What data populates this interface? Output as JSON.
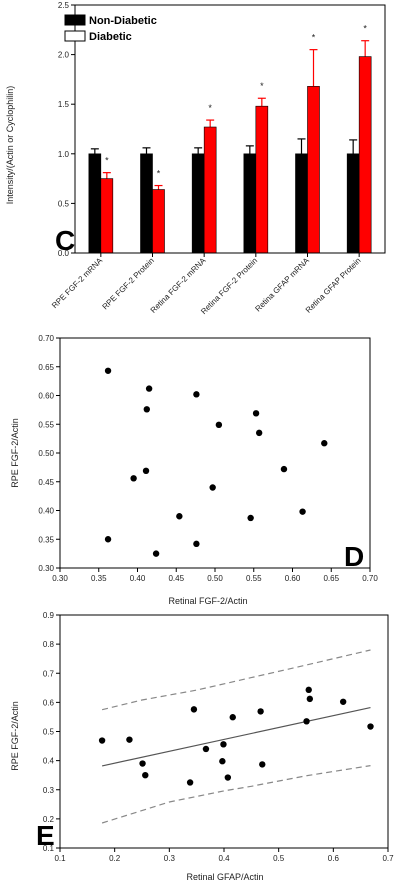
{
  "chart_data": [
    {
      "type": "bar",
      "panel_label": "C",
      "ylabel": "Intensity/(Actin or Cyclophilin)",
      "ylim": [
        0,
        2.5
      ],
      "yticks": [
        "0.0",
        "0.5",
        "1.0",
        "1.5",
        "2.0",
        "2.5"
      ],
      "categories": [
        "RPE FGF-2 mRNA",
        "RPE FGF-2 Protein",
        "Retina FGF-2 mRNA",
        "Retina FGF-2 Protein",
        "Retina GFAP mRNA",
        "Retina GFAP Protein"
      ],
      "series": [
        {
          "name": "Non-Diabetic",
          "color": "#000000",
          "values": [
            1.0,
            1.0,
            1.0,
            1.0,
            1.0,
            1.0
          ],
          "errors": [
            0.05,
            0.06,
            0.06,
            0.08,
            0.15,
            0.14
          ]
        },
        {
          "name": "Diabetic",
          "color": "#ff0000",
          "values": [
            0.75,
            0.64,
            1.27,
            1.48,
            1.68,
            1.98
          ],
          "errors": [
            0.06,
            0.04,
            0.07,
            0.08,
            0.37,
            0.16
          ]
        }
      ],
      "significance_marker": "*",
      "legend_position": "top-left"
    },
    {
      "type": "scatter",
      "panel_label": "D",
      "xlabel": "Retinal FGF-2/Actin",
      "ylabel": "RPE FGF-2/Actin",
      "xlim": [
        0.3,
        0.7
      ],
      "ylim": [
        0.3,
        0.7
      ],
      "xticks": [
        "0.30",
        "0.35",
        "0.40",
        "0.45",
        "0.50",
        "0.55",
        "0.60",
        "0.65",
        "0.70"
      ],
      "yticks": [
        "0.30",
        "0.35",
        "0.40",
        "0.45",
        "0.50",
        "0.55",
        "0.60",
        "0.65",
        "0.70"
      ],
      "points": [
        [
          0.362,
          0.643
        ],
        [
          0.415,
          0.612
        ],
        [
          0.476,
          0.602
        ],
        [
          0.412,
          0.576
        ],
        [
          0.553,
          0.569
        ],
        [
          0.505,
          0.549
        ],
        [
          0.557,
          0.535
        ],
        [
          0.641,
          0.517
        ],
        [
          0.589,
          0.472
        ],
        [
          0.411,
          0.469
        ],
        [
          0.395,
          0.456
        ],
        [
          0.497,
          0.44
        ],
        [
          0.613,
          0.398
        ],
        [
          0.454,
          0.39
        ],
        [
          0.546,
          0.387
        ],
        [
          0.362,
          0.35
        ],
        [
          0.476,
          0.342
        ],
        [
          0.424,
          0.325
        ]
      ]
    },
    {
      "type": "scatter",
      "panel_label": "E",
      "xlabel": "Retinal GFAP/Actin",
      "ylabel": "RPE FGF-2/Actin",
      "xlim": [
        0.1,
        0.7
      ],
      "ylim": [
        0.1,
        0.9
      ],
      "xticks": [
        "0.1",
        "0.2",
        "0.3",
        "0.4",
        "0.5",
        "0.6",
        "0.7"
      ],
      "yticks": [
        "0.1",
        "0.2",
        "0.3",
        "0.4",
        "0.5",
        "0.6",
        "0.7",
        "0.8",
        "0.9"
      ],
      "points": [
        [
          0.555,
          0.643
        ],
        [
          0.557,
          0.612
        ],
        [
          0.618,
          0.602
        ],
        [
          0.345,
          0.576
        ],
        [
          0.467,
          0.569
        ],
        [
          0.416,
          0.549
        ],
        [
          0.551,
          0.535
        ],
        [
          0.668,
          0.517
        ],
        [
          0.227,
          0.472
        ],
        [
          0.177,
          0.469
        ],
        [
          0.399,
          0.456
        ],
        [
          0.367,
          0.44
        ],
        [
          0.397,
          0.398
        ],
        [
          0.251,
          0.39
        ],
        [
          0.47,
          0.387
        ],
        [
          0.256,
          0.35
        ],
        [
          0.407,
          0.342
        ],
        [
          0.338,
          0.325
        ]
      ],
      "regression_line": [
        [
          0.177,
          0.382
        ],
        [
          0.668,
          0.582
        ]
      ],
      "ci_upper": [
        [
          0.177,
          0.575
        ],
        [
          0.25,
          0.608
        ],
        [
          0.35,
          0.642
        ],
        [
          0.45,
          0.685
        ],
        [
          0.55,
          0.728
        ],
        [
          0.668,
          0.78
        ]
      ],
      "ci_lower": [
        [
          0.177,
          0.186
        ],
        [
          0.3,
          0.258
        ],
        [
          0.4,
          0.296
        ],
        [
          0.45,
          0.312
        ],
        [
          0.55,
          0.348
        ],
        [
          0.668,
          0.383
        ]
      ]
    }
  ]
}
